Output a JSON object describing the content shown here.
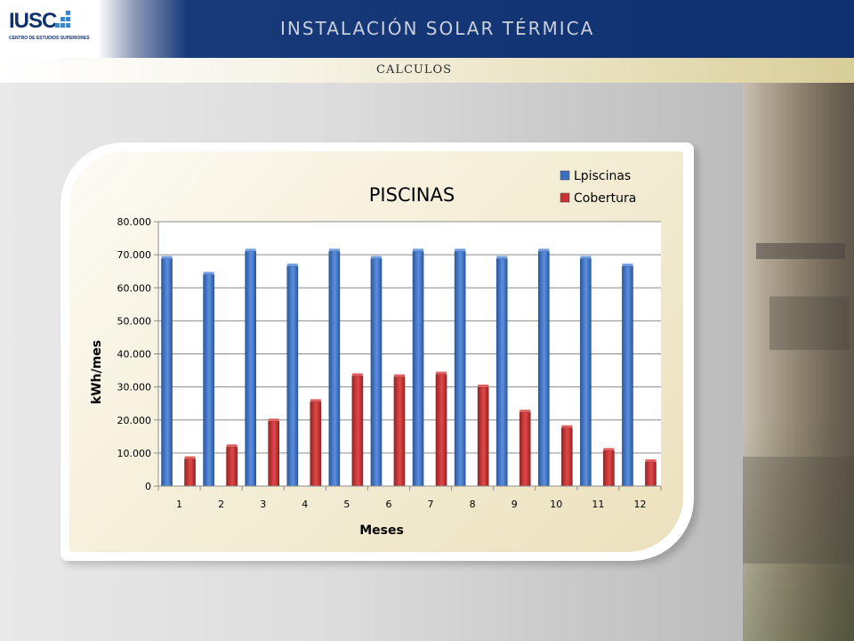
{
  "header": {
    "logo_text": "IUSC",
    "logo_subtext": "CENTRO DE ESTUDIOS SUPERIORES",
    "title": "INSTALACIÓN SOLAR TÉRMICA",
    "subtitle": "CALCULOS",
    "brand_color": "#10306f"
  },
  "chart_data": {
    "type": "bar",
    "title": "PISCINAS",
    "xlabel": "Meses",
    "ylabel": "kWh/mes",
    "categories": [
      "1",
      "2",
      "3",
      "4",
      "5",
      "6",
      "7",
      "8",
      "9",
      "10",
      "11",
      "12"
    ],
    "series": [
      {
        "name": "Lpiscinas",
        "color": "#3a6fc4",
        "values": [
          68800,
          64000,
          71000,
          66500,
          71000,
          68800,
          71000,
          71000,
          68800,
          71000,
          68800,
          66500
        ]
      },
      {
        "name": "Cobertura",
        "color": "#c83232",
        "values": [
          8200,
          11800,
          19600,
          25500,
          33300,
          33000,
          33800,
          29900,
          22300,
          17600,
          10700,
          7300
        ]
      }
    ],
    "ylim": [
      0,
      80000
    ],
    "yticks": [
      0,
      10000,
      20000,
      30000,
      40000,
      50000,
      60000,
      70000,
      80000
    ],
    "ytick_labels": [
      "0",
      "10.000",
      "20.000",
      "30.000",
      "40.000",
      "50.000",
      "60.000",
      "70.000",
      "80.000"
    ],
    "grid": true,
    "legend_position": "top-right"
  }
}
